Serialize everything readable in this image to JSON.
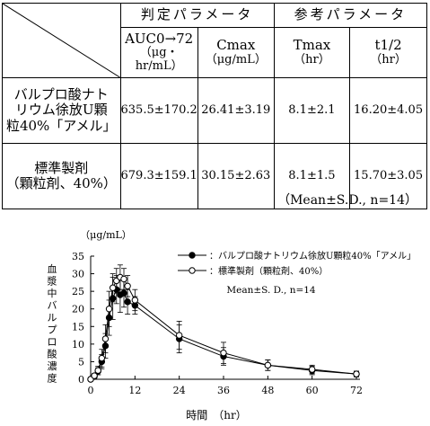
{
  "table": {
    "group_headers": [
      "判定パラメータ",
      "参考パラメータ"
    ],
    "columns": [
      {
        "name": "AUC0→72",
        "unit": "（μg・hr/mL）"
      },
      {
        "name": "Cmax",
        "unit": "（μg/mL）"
      },
      {
        "name": "Tmax",
        "unit": "（hr）"
      },
      {
        "name": "t1/2",
        "unit": "（hr）"
      }
    ],
    "rows": [
      {
        "label_lines": [
          "バルプロ酸ナト",
          "リウム徐放U顆",
          "粒40%「アメル」"
        ],
        "values": [
          "635.5±170.2",
          "26.41±3.19",
          "8.1±2.1",
          "16.20±4.05"
        ]
      },
      {
        "label_lines": [
          "標準製剤",
          "（顆粒剤、40%）"
        ],
        "values": [
          "679.3±159.1",
          "30.15±2.63",
          "8.1±1.5",
          "15.70±3.05"
        ]
      }
    ],
    "note": "（Mean±S.D., n=14）"
  },
  "chart_data": {
    "type": "line",
    "ylabel_unit": "（μg/mL）",
    "ylabel": "血漿中バルプロ酸濃度",
    "xlabel": "時間　（hr）",
    "xlim": [
      0,
      72
    ],
    "ylim": [
      0,
      35
    ],
    "xticks": [
      0,
      12,
      24,
      36,
      48,
      60,
      72
    ],
    "yticks": [
      0,
      5,
      10,
      15,
      20,
      25,
      30,
      35
    ],
    "x": [
      0,
      1,
      2,
      3,
      4,
      5,
      6,
      7,
      8,
      9,
      10,
      12,
      24,
      36,
      48,
      60,
      72
    ],
    "series": [
      {
        "name": "：バルプロ酸ナトリウム徐放U顆粒40%「アメル」",
        "marker": "filled-circle",
        "values": [
          0,
          0.8,
          2.3,
          5.0,
          9.5,
          17.5,
          23.0,
          25.5,
          24.0,
          24.5,
          22.0,
          21.0,
          11.5,
          6.5,
          4.0,
          2.5,
          1.5
        ],
        "errors": [
          0,
          0.5,
          1.0,
          2.0,
          3.5,
          5.0,
          6.0,
          4.0,
          5.0,
          4.0,
          3.5,
          2.5,
          4.0,
          2.5,
          1.5,
          1.2,
          0.8
        ]
      },
      {
        "name": "：標準製剤（顆粒剤、40%）",
        "marker": "open-circle",
        "values": [
          0,
          1.0,
          2.5,
          6.0,
          11.5,
          20.0,
          26.0,
          28.0,
          29.0,
          28.5,
          26.5,
          22.5,
          12.5,
          7.5,
          4.0,
          2.8,
          1.5
        ],
        "errors": [
          0,
          0.6,
          1.2,
          2.5,
          4.0,
          5.0,
          4.0,
          3.5,
          3.5,
          3.0,
          3.0,
          3.0,
          4.0,
          3.0,
          1.5,
          1.2,
          0.8
        ]
      }
    ],
    "stats_note": "Mean±S. D., n=14"
  }
}
